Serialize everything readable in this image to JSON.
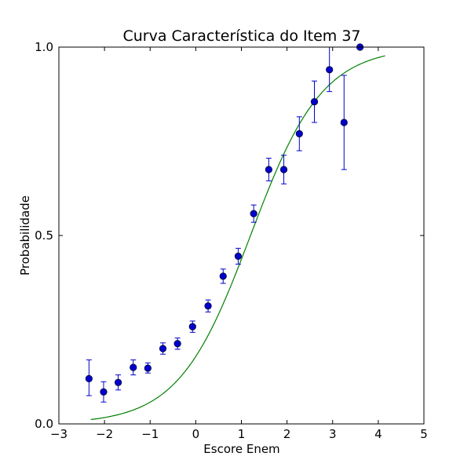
{
  "chart_data": {
    "type": "scatter",
    "title": "Curva Característica do Item 37",
    "xlabel": "Escore Enem",
    "ylabel": "Probabilidade",
    "xlim": [
      -3,
      5
    ],
    "ylim": [
      0,
      1
    ],
    "xticks": [
      -3,
      -2,
      -1,
      0,
      1,
      2,
      3,
      4,
      5
    ],
    "xtick_labels": [
      "−3",
      "−2",
      "−1",
      "0",
      "1",
      "2",
      "3",
      "4",
      "5"
    ],
    "yticks": [
      0,
      0.5,
      1
    ],
    "ytick_labels": [
      "0.0",
      "0.5",
      "1.0"
    ],
    "grid": false,
    "legend": "none",
    "observed": {
      "color": "#0000cc",
      "points": [
        {
          "x": -2.34,
          "y": 0.12,
          "err_low": 0.075,
          "err_high": 0.17
        },
        {
          "x": -2.02,
          "y": 0.085,
          "err_low": 0.058,
          "err_high": 0.112
        },
        {
          "x": -1.7,
          "y": 0.11,
          "err_low": 0.09,
          "err_high": 0.13
        },
        {
          "x": -1.37,
          "y": 0.15,
          "err_low": 0.13,
          "err_high": 0.17
        },
        {
          "x": -1.05,
          "y": 0.148,
          "err_low": 0.135,
          "err_high": 0.162
        },
        {
          "x": -0.72,
          "y": 0.2,
          "err_low": 0.185,
          "err_high": 0.215
        },
        {
          "x": -0.4,
          "y": 0.213,
          "err_low": 0.198,
          "err_high": 0.228
        },
        {
          "x": -0.07,
          "y": 0.258,
          "err_low": 0.243,
          "err_high": 0.273
        },
        {
          "x": 0.27,
          "y": 0.313,
          "err_low": 0.297,
          "err_high": 0.329
        },
        {
          "x": 0.6,
          "y": 0.392,
          "err_low": 0.373,
          "err_high": 0.411
        },
        {
          "x": 0.93,
          "y": 0.445,
          "err_low": 0.424,
          "err_high": 0.466
        },
        {
          "x": 1.27,
          "y": 0.558,
          "err_low": 0.535,
          "err_high": 0.581
        },
        {
          "x": 1.6,
          "y": 0.675,
          "err_low": 0.645,
          "err_high": 0.705
        },
        {
          "x": 1.93,
          "y": 0.675,
          "err_low": 0.637,
          "err_high": 0.713
        },
        {
          "x": 2.27,
          "y": 0.77,
          "err_low": 0.725,
          "err_high": 0.815
        },
        {
          "x": 2.6,
          "y": 0.855,
          "err_low": 0.8,
          "err_high": 0.91
        },
        {
          "x": 2.93,
          "y": 0.94,
          "err_low": 0.882,
          "err_high": 1.0
        },
        {
          "x": 3.25,
          "y": 0.8,
          "err_low": 0.675,
          "err_high": 0.925
        },
        {
          "x": 3.6,
          "y": 1.0,
          "err_low": 1.0,
          "err_high": 1.0
        }
      ]
    },
    "fitted_curve": {
      "color": "#008000",
      "model": "logistic",
      "a": 1.27,
      "b": 1.2,
      "x_range": [
        -2.3,
        4.15
      ]
    }
  }
}
